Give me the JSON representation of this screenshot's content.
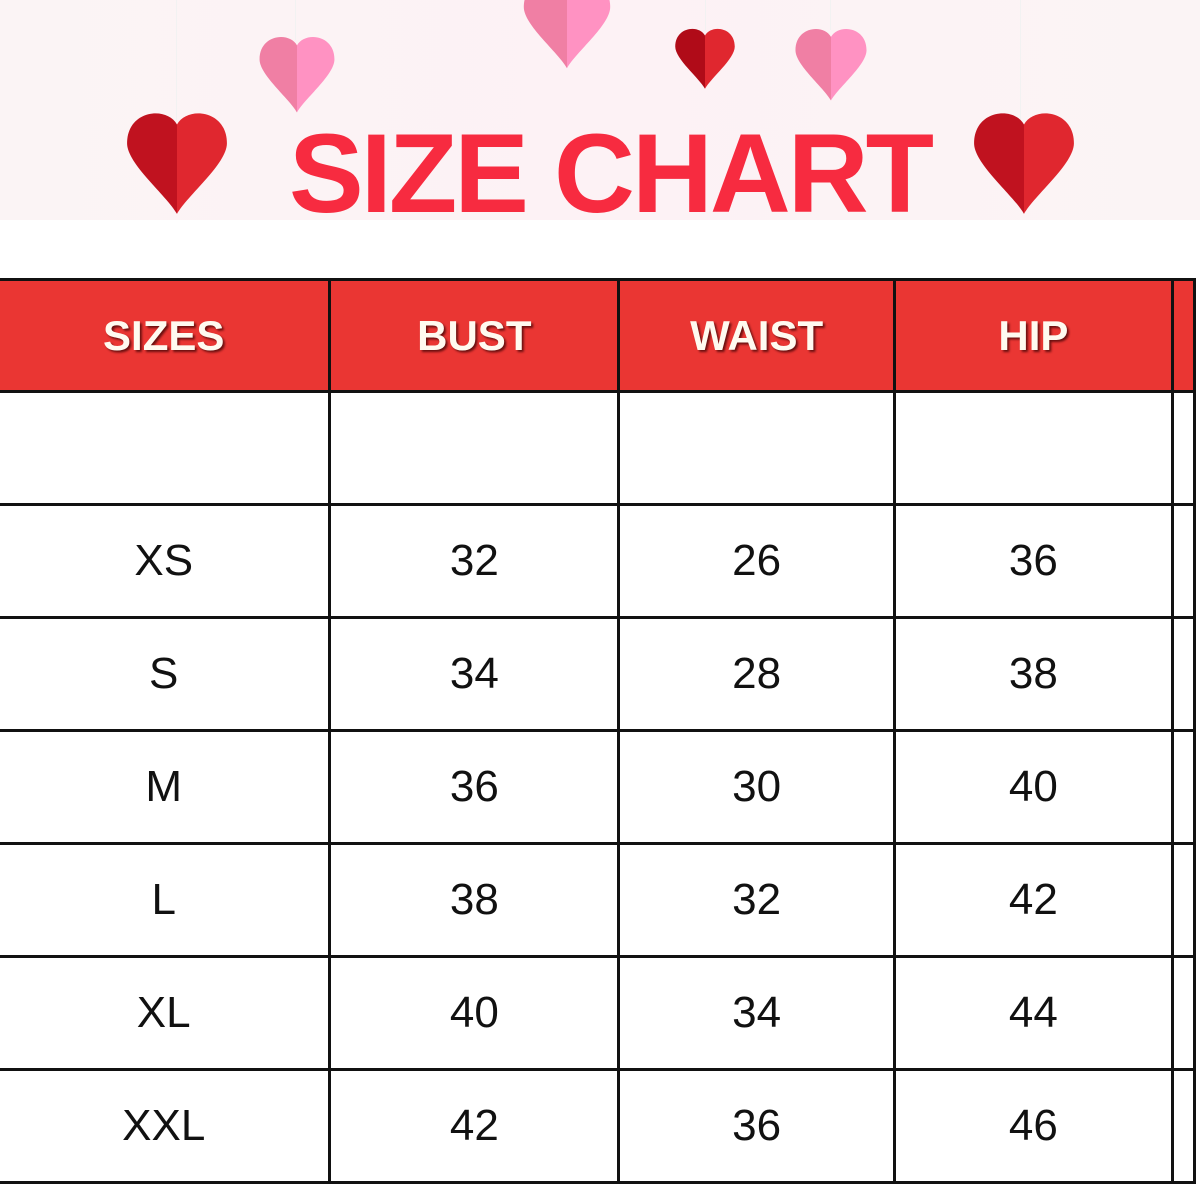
{
  "title": "SIZE CHART",
  "colors": {
    "accent": "#f72b40",
    "header_bg": "#ea3633",
    "banner_bg": "#fdf2f5"
  },
  "decorations": [
    "heart-icon"
  ],
  "table": {
    "headers": [
      "SIZES",
      "BUST",
      "WAIST",
      "HIP"
    ],
    "rows": [
      [
        "",
        "",
        "",
        ""
      ],
      [
        "XS",
        "32",
        "26",
        "36"
      ],
      [
        "S",
        "34",
        "28",
        "38"
      ],
      [
        "M",
        "36",
        "30",
        "40"
      ],
      [
        "L",
        "38",
        "32",
        "42"
      ],
      [
        "XL",
        "40",
        "34",
        "44"
      ],
      [
        "XXL",
        "42",
        "36",
        "46"
      ]
    ]
  }
}
